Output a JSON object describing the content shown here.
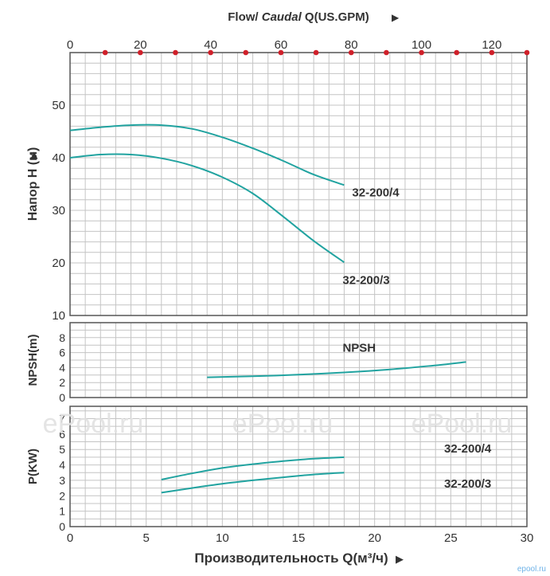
{
  "chart_data": [
    {
      "type": "line",
      "top_axis": {
        "label_prefix": "Flow/ ",
        "label_italic": "Caudal",
        "label_suffix": " Q(US.GPM)",
        "ticks": [
          "0",
          "20",
          "40",
          "60",
          "80",
          "100",
          "120"
        ],
        "tick_values": [
          0,
          20,
          40,
          60,
          80,
          100,
          120
        ],
        "range": [
          0,
          130
        ],
        "dot_values": [
          10,
          20,
          30,
          40,
          50,
          60,
          70,
          80,
          90,
          100,
          110,
          120,
          130
        ],
        "dot_color": "#d0202a"
      },
      "ylabel": "Напор H (м)",
      "yticks": [
        "10",
        "20",
        "30",
        "40",
        "50"
      ],
      "ytick_values": [
        10,
        20,
        30,
        40,
        50
      ],
      "ylim": [
        10,
        60
      ],
      "xlim": [
        0,
        30
      ],
      "grid": true,
      "line_color": "#21a3a0",
      "series": [
        {
          "name": "32-200/4",
          "x": [
            0,
            2,
            4,
            6,
            8,
            10,
            12,
            14,
            16,
            18
          ],
          "y": [
            45.2,
            45.8,
            46.2,
            46.2,
            45.5,
            43.9,
            41.8,
            39.4,
            36.8,
            34.8
          ]
        },
        {
          "name": "32-200/3",
          "x": [
            0,
            2,
            4,
            6,
            8,
            10,
            12,
            14,
            16,
            18
          ],
          "y": [
            40.0,
            40.6,
            40.6,
            39.9,
            38.5,
            36.3,
            33.2,
            28.8,
            24.2,
            20.1
          ]
        }
      ]
    },
    {
      "type": "line",
      "ylabel": "NPSH(m)",
      "yticks": [
        "0",
        "2",
        "4",
        "6",
        "8"
      ],
      "ytick_values": [
        0,
        2,
        4,
        6,
        8
      ],
      "ylim": [
        0,
        10
      ],
      "xlim": [
        0,
        30
      ],
      "grid": true,
      "series": [
        {
          "name": "NPSH",
          "x": [
            9,
            12,
            15,
            18,
            21,
            24,
            26
          ],
          "y": [
            2.7,
            2.85,
            3.05,
            3.35,
            3.75,
            4.3,
            4.75
          ]
        }
      ]
    },
    {
      "type": "line",
      "ylabel": "P(KW)",
      "yticks": [
        "0",
        "1",
        "2",
        "3",
        "4",
        "5",
        "6",
        "7"
      ],
      "ytick_values": [
        0,
        1,
        2,
        3,
        4,
        5,
        6,
        7
      ],
      "ylim": [
        0,
        7.8
      ],
      "xlim": [
        0,
        30
      ],
      "grid": true,
      "xlabel": "Производительность Q(м³/ч)",
      "xticks": [
        "0",
        "5",
        "10",
        "15",
        "20",
        "25",
        "30"
      ],
      "xtick_values": [
        0,
        5,
        10,
        15,
        20,
        25,
        30
      ],
      "series": [
        {
          "name": "32-200/4",
          "x": [
            6,
            8,
            10,
            12,
            14,
            16,
            18
          ],
          "y": [
            3.05,
            3.45,
            3.8,
            4.05,
            4.25,
            4.4,
            4.5
          ]
        },
        {
          "name": "32-200/3",
          "x": [
            6,
            8,
            10,
            12,
            14,
            16,
            18
          ],
          "y": [
            2.2,
            2.5,
            2.78,
            3.0,
            3.2,
            3.38,
            3.5
          ]
        }
      ]
    }
  ],
  "watermarks": [
    "ePool.ru",
    "ePool.ru",
    "ePool.ru"
  ],
  "corner_mark": "epool.ru"
}
